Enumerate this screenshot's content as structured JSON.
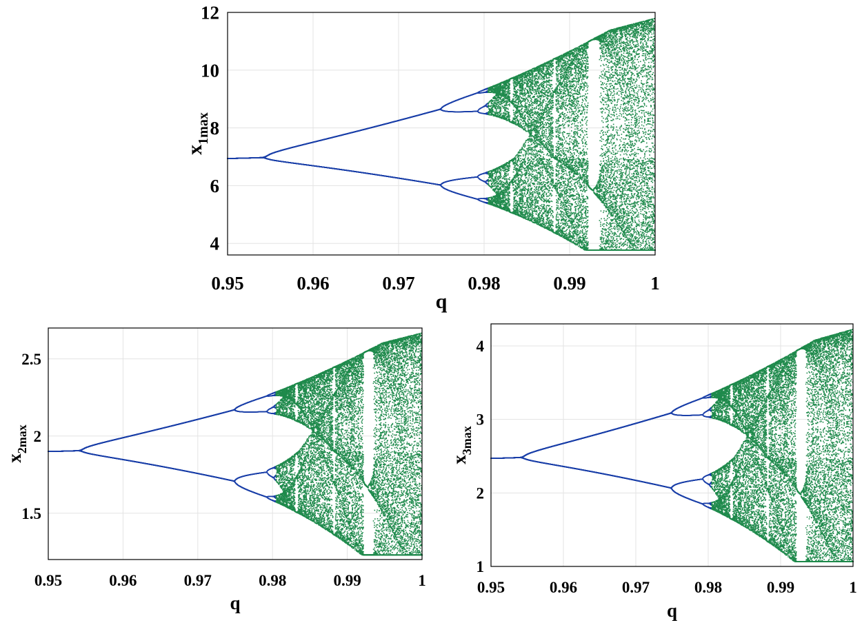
{
  "chart_data": [
    {
      "type": "scatter",
      "subtype": "bifurcation-diagram",
      "xlabel": "q",
      "ylabel_main": "x",
      "ylabel_sub": "1max",
      "xlim": [
        0.95,
        1.0
      ],
      "ylim": [
        3.6,
        12
      ],
      "xticks": [
        0.95,
        0.96,
        0.97,
        0.98,
        0.99,
        1
      ],
      "xtick_labels": [
        "0.95",
        "0.96",
        "0.97",
        "0.98",
        "0.99",
        "1"
      ],
      "yticks": [
        4,
        6,
        8,
        10,
        12
      ],
      "ytick_labels": [
        "4",
        "6",
        "8",
        "10",
        "12"
      ],
      "fixed_value": 6.94,
      "grid": true,
      "colors": {
        "orbit": "#1a3fa8",
        "chaos": "#1f8a4c"
      }
    },
    {
      "type": "scatter",
      "subtype": "bifurcation-diagram",
      "xlabel": "q",
      "ylabel_main": "x",
      "ylabel_sub": "2max",
      "xlim": [
        0.95,
        1.0
      ],
      "ylim": [
        1.2,
        2.7
      ],
      "xticks": [
        0.95,
        0.96,
        0.97,
        0.98,
        0.99,
        1
      ],
      "xtick_labels": [
        "0.95",
        "0.96",
        "0.97",
        "0.98",
        "0.99",
        "1"
      ],
      "yticks": [
        1.5,
        2,
        2.5
      ],
      "ytick_labels": [
        "1.5",
        "2",
        "2.5"
      ],
      "fixed_value": 1.9,
      "grid": true,
      "colors": {
        "orbit": "#1a3fa8",
        "chaos": "#1f8a4c"
      }
    },
    {
      "type": "scatter",
      "subtype": "bifurcation-diagram",
      "xlabel": "q",
      "ylabel_main": "x",
      "ylabel_sub": "3max",
      "xlim": [
        0.95,
        1.0
      ],
      "ylim": [
        1,
        4.3
      ],
      "xticks": [
        0.95,
        0.96,
        0.97,
        0.98,
        0.99,
        1
      ],
      "xtick_labels": [
        "0.95",
        "0.96",
        "0.97",
        "0.98",
        "0.99",
        "1"
      ],
      "yticks": [
        1,
        2,
        3,
        4
      ],
      "ytick_labels": [
        "1",
        "2",
        "3",
        "4"
      ],
      "fixed_value": 2.47,
      "grid": true,
      "colors": {
        "orbit": "#1a3fa8",
        "chaos": "#1f8a4c"
      }
    }
  ]
}
